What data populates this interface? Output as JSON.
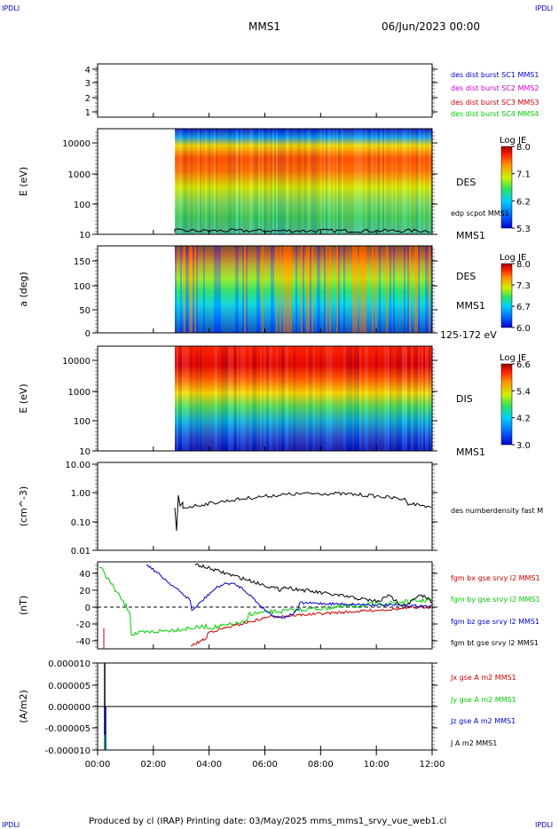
{
  "header": {
    "corner_left": "IPDLI",
    "corner_right": "IPDLI",
    "corner_bottom_left": "IPDLI",
    "corner_bottom_right": "IPDLI",
    "title": "MMS1",
    "date": "06/Jun/2023 00:00",
    "footer": "Produced by cl (IRAP)   Printing date: 03/May/2025   mms_mms1_srvy_vue_web1.cl"
  },
  "colors": {
    "red": "#cc0000",
    "green": "#00cc00",
    "blue": "#0000cc",
    "magenta": "#cc00cc",
    "black": "#000000"
  },
  "chart_data": [
    {
      "type": "line",
      "id": "panel-burst",
      "yticks": [
        "4",
        "3",
        "2",
        "1"
      ],
      "legend": [
        {
          "label": "des dist burst SC1 MMS1",
          "color": "#0000cc"
        },
        {
          "label": "des dist burst SC2 MMS2",
          "color": "#cc00cc"
        },
        {
          "label": "des dist burst SC3 MMS3",
          "color": "#cc0000"
        },
        {
          "label": "des dist burst SC4 MMS4",
          "color": "#00cc00"
        }
      ]
    },
    {
      "type": "heatmap",
      "id": "panel-des-energy",
      "ylabel": "E (eV)",
      "yticks": [
        "10000",
        "1000",
        "100",
        "10"
      ],
      "right_labels": [
        "DES",
        "edp scpot MMS1",
        "MMS1"
      ],
      "colorbar": {
        "title": "Log JE",
        "ticks": [
          "8.0",
          "7.1",
          "6.2",
          "5.3"
        ]
      }
    },
    {
      "type": "heatmap",
      "id": "panel-des-pitch",
      "ylabel": "a (deg)",
      "yticks": [
        "150",
        "100",
        "50",
        "0"
      ],
      "right_labels": [
        "DES",
        "MMS1",
        "125-172 eV"
      ],
      "colorbar": {
        "title": "Log JE",
        "ticks": [
          "8.0",
          "7.3",
          "6.7",
          "6.0"
        ]
      }
    },
    {
      "type": "heatmap",
      "id": "panel-dis-energy",
      "ylabel": "E (eV)",
      "yticks": [
        "10000",
        "1000",
        "100",
        "10"
      ],
      "right_labels": [
        "DIS",
        "MMS1"
      ],
      "colorbar": {
        "title": "Log JE",
        "ticks": [
          "6.6",
          "5.4",
          "4.2",
          "3.0"
        ]
      }
    },
    {
      "type": "line",
      "id": "panel-density",
      "ylabel": "(cm^-3)",
      "yscale": "log",
      "yticks": [
        "10.00",
        "1.00",
        "0.10",
        "0.01"
      ],
      "series": [
        {
          "name": "des numberdensity fast M",
          "color": "#000000"
        }
      ]
    },
    {
      "type": "line",
      "id": "panel-bfield",
      "ylabel": "(nT)",
      "yticks": [
        "40",
        "20",
        "0",
        "-20",
        "-40"
      ],
      "ylim": [
        -50,
        50
      ],
      "series": [
        {
          "name": "fgm bx gse srvy l2 MMS1",
          "color": "#cc0000"
        },
        {
          "name": "fgm by gse srvy l2 MMS1",
          "color": "#00cc00"
        },
        {
          "name": "fgm bz gse srvy l2 MMS1",
          "color": "#0000cc"
        },
        {
          "name": "fgm bt gse srvy l2 MMS1",
          "color": "#000000"
        }
      ]
    },
    {
      "type": "line",
      "id": "panel-current",
      "ylabel": "(A/m2)",
      "yticks": [
        "0.000010",
        "0.000005",
        "0.000000",
        "-0.000005",
        "-0.000010"
      ],
      "ylim": [
        -1e-05,
        1e-05
      ],
      "series": [
        {
          "name": "Jx gse A m2 MMS1",
          "color": "#cc0000"
        },
        {
          "name": "Jy gse A m2 MMS1",
          "color": "#00cc00"
        },
        {
          "name": "Jz gse A m2 MMS1",
          "color": "#0000cc"
        },
        {
          "name": "J A m2 MMS1",
          "color": "#000000"
        }
      ]
    }
  ],
  "xaxis": {
    "ticks": [
      "00:00",
      "02:00",
      "04:00",
      "06:00",
      "08:00",
      "10:00",
      "12:00"
    ]
  }
}
